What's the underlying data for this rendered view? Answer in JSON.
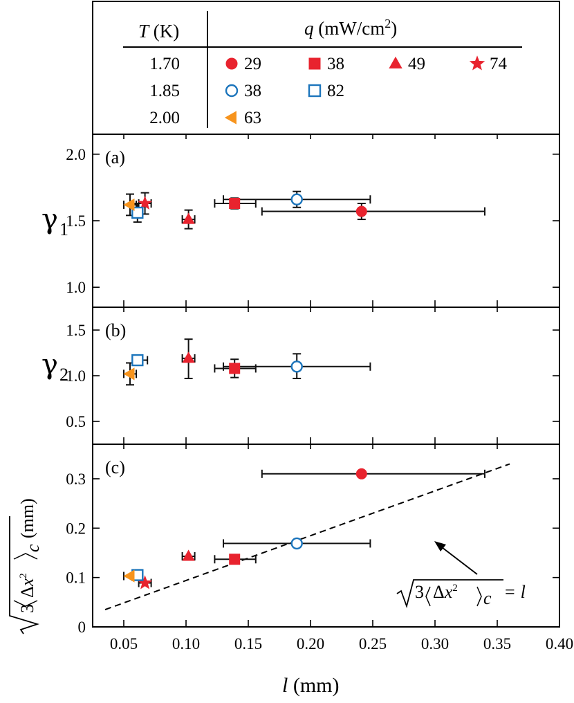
{
  "legend": {
    "col1_header_var": "T",
    "col1_header_unit": "(K)",
    "col2_header_var": "q",
    "col2_header_unit": "(mW/cm",
    "col2_header_sup": "2",
    "col2_header_close": ")",
    "rows": [
      {
        "T": "1.70",
        "entries": [
          {
            "label": "29",
            "marker": "circle",
            "filled": true,
            "color": "#e8232e"
          },
          {
            "label": "38",
            "marker": "square",
            "filled": true,
            "color": "#e8232e"
          },
          {
            "label": "49",
            "marker": "triangle-up",
            "filled": true,
            "color": "#e8232e"
          },
          {
            "label": "74",
            "marker": "star",
            "filled": true,
            "color": "#e8232e"
          }
        ]
      },
      {
        "T": "1.85",
        "entries": [
          {
            "label": "38",
            "marker": "circle",
            "filled": false,
            "color": "#1c75bc"
          },
          {
            "label": "82",
            "marker": "square",
            "filled": false,
            "color": "#1c75bc"
          }
        ]
      },
      {
        "T": "2.00",
        "entries": [
          {
            "label": "63",
            "marker": "triangle-left",
            "filled": true,
            "color": "#f7941d"
          }
        ]
      }
    ]
  },
  "chart_data": {
    "type": "scatter",
    "xlabel_var": "l",
    "xlabel_unit": "(mm)",
    "xlim": [
      0.025,
      0.4
    ],
    "xticks": [
      "0.05",
      "0.10",
      "0.15",
      "0.20",
      "0.25",
      "0.30",
      "0.35",
      "0.40"
    ],
    "panels": [
      {
        "id": "a",
        "label": "(a)",
        "ylabel_sym": "γ",
        "ylabel_sub": "1",
        "ylim": [
          0.85,
          2.15
        ],
        "yticks": [
          "1.0",
          "1.5",
          "2.0"
        ],
        "points": [
          {
            "series": "1.70K-29",
            "x": 0.241,
            "y": 1.57,
            "xerr": [
              0.161,
              0.34
            ],
            "yerr": [
              1.51,
              1.63
            ]
          },
          {
            "series": "1.70K-38",
            "x": 0.139,
            "y": 1.63,
            "xerr": [
              0.123,
              0.156
            ],
            "yerr": [
              1.59,
              1.67
            ]
          },
          {
            "series": "1.70K-49",
            "x": 0.102,
            "y": 1.51,
            "xerr": [
              0.097,
              0.107
            ],
            "yerr": [
              1.44,
              1.58
            ]
          },
          {
            "series": "1.70K-74",
            "x": 0.067,
            "y": 1.63,
            "xerr": [
              0.062,
              0.072
            ],
            "yerr": [
              1.55,
              1.71
            ]
          },
          {
            "series": "1.85K-38",
            "x": 0.189,
            "y": 1.66,
            "xerr": [
              0.13,
              0.248
            ],
            "yerr": [
              1.6,
              1.72
            ]
          },
          {
            "series": "1.85K-82",
            "x": 0.061,
            "y": 1.56,
            "xerr": [
              0.057,
              0.065
            ],
            "yerr": [
              1.49,
              1.63
            ]
          },
          {
            "series": "2.00K-63",
            "x": 0.055,
            "y": 1.62,
            "xerr": [
              0.05,
              0.06
            ],
            "yerr": [
              1.54,
              1.7
            ]
          }
        ]
      },
      {
        "id": "b",
        "label": "(b)",
        "ylabel_sym": "γ",
        "ylabel_sub": "2",
        "ylim": [
          0.25,
          1.75
        ],
        "yticks": [
          "0.5",
          "1.0",
          "1.5"
        ],
        "points": [
          {
            "series": "1.70K-38",
            "x": 0.139,
            "y": 1.08,
            "xerr": [
              0.123,
              0.156
            ],
            "yerr": [
              0.98,
              1.18
            ]
          },
          {
            "series": "1.70K-49",
            "x": 0.102,
            "y": 1.19,
            "xerr": [
              0.097,
              0.107
            ],
            "yerr": [
              0.97,
              1.4
            ]
          },
          {
            "series": "1.85K-38",
            "x": 0.189,
            "y": 1.1,
            "xerr": [
              0.13,
              0.248
            ],
            "yerr": [
              0.97,
              1.24
            ]
          },
          {
            "series": "1.85K-82",
            "x": 0.061,
            "y": 1.17,
            "xerr": [
              0.057,
              0.069
            ],
            "yerr": [
              1.14,
              1.21
            ]
          },
          {
            "series": "2.00K-63",
            "x": 0.055,
            "y": 1.02,
            "xerr": [
              0.05,
              0.06
            ],
            "yerr": [
              0.9,
              1.14
            ]
          }
        ]
      },
      {
        "id": "c",
        "label": "(c)",
        "ylabel_unit": "(mm)",
        "ylim": [
          0,
          0.37
        ],
        "yticks": [
          "0",
          "0.1",
          "0.2",
          "0.3"
        ],
        "points": [
          {
            "series": "1.70K-29",
            "x": 0.241,
            "y": 0.31,
            "xerr": [
              0.161,
              0.34
            ]
          },
          {
            "series": "1.70K-38",
            "x": 0.139,
            "y": 0.137,
            "xerr": [
              0.123,
              0.156
            ]
          },
          {
            "series": "1.70K-49",
            "x": 0.102,
            "y": 0.143,
            "xerr": [
              0.097,
              0.107
            ]
          },
          {
            "series": "1.70K-74",
            "x": 0.067,
            "y": 0.089,
            "xerr": [
              0.062,
              0.072
            ]
          },
          {
            "series": "1.85K-38",
            "x": 0.189,
            "y": 0.169,
            "xerr": [
              0.13,
              0.248
            ]
          },
          {
            "series": "1.85K-82",
            "x": 0.061,
            "y": 0.105,
            "xerr": [
              0.057,
              0.065
            ]
          },
          {
            "series": "2.00K-63",
            "x": 0.055,
            "y": 0.103,
            "xerr": [
              0.05,
              0.06
            ]
          }
        ],
        "reference_line": {
          "x": [
            0.035,
            0.36
          ],
          "y": [
            0.035,
            0.33
          ],
          "style": "dashed"
        },
        "annotation_rhs": "= l"
      }
    ]
  }
}
